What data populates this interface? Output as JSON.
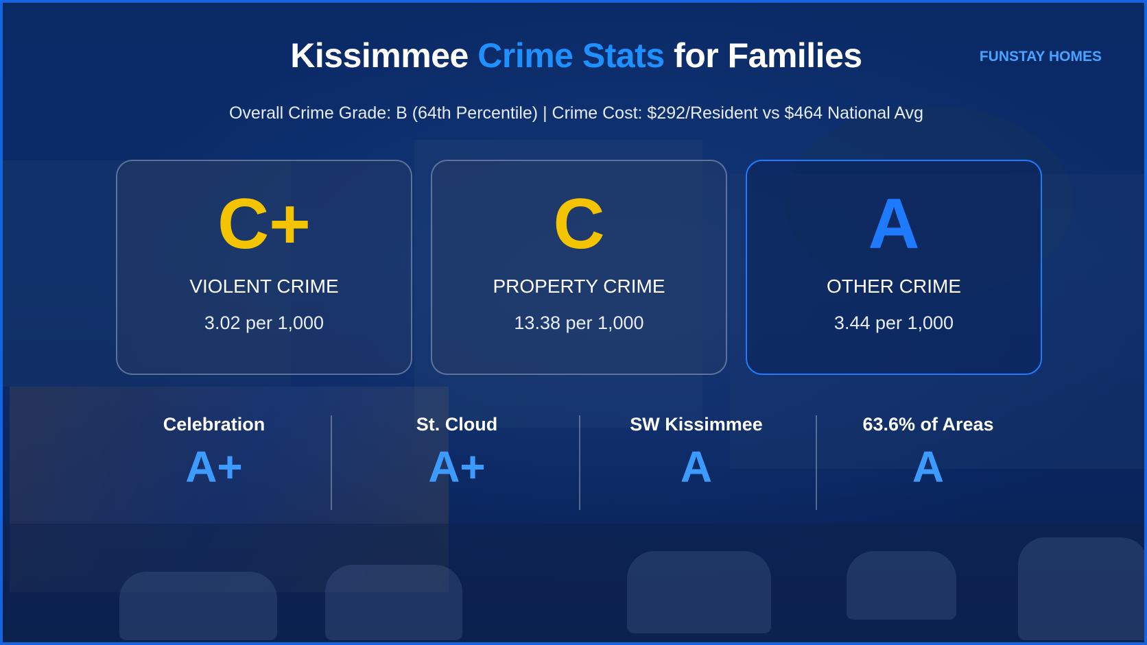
{
  "header": {
    "title_prefix": "Kissimmee",
    "title_accent": "Crime Stats",
    "title_suffix": "for Families",
    "brand": "FUNSTAY HOMES",
    "subtitle": "Overall Crime Grade: B (64th Percentile) | Crime Cost: $292/Resident vs $464 National Avg"
  },
  "cards": [
    {
      "grade": "C+",
      "label": "VIOLENT CRIME",
      "rate": "3.02 per 1,000",
      "grade_color": "#f5c400"
    },
    {
      "grade": "C",
      "label": "PROPERTY CRIME",
      "rate": "13.38 per 1,000",
      "grade_color": "#f5c400"
    },
    {
      "grade": "A",
      "label": "OTHER CRIME",
      "rate": "3.44 per 1,000",
      "grade_color": "#1e7bff"
    }
  ],
  "areas": [
    {
      "name": "Celebration",
      "grade": "A+"
    },
    {
      "name": "St. Cloud",
      "grade": "A+"
    },
    {
      "name": "SW Kissimmee",
      "grade": "A"
    },
    {
      "name": "63.6% of Areas",
      "grade": "A"
    }
  ],
  "colors": {
    "accent": "#1e90ff",
    "grade_yellow": "#f5c400",
    "grade_blue": "#3d9bff",
    "border": "#1565e0"
  }
}
